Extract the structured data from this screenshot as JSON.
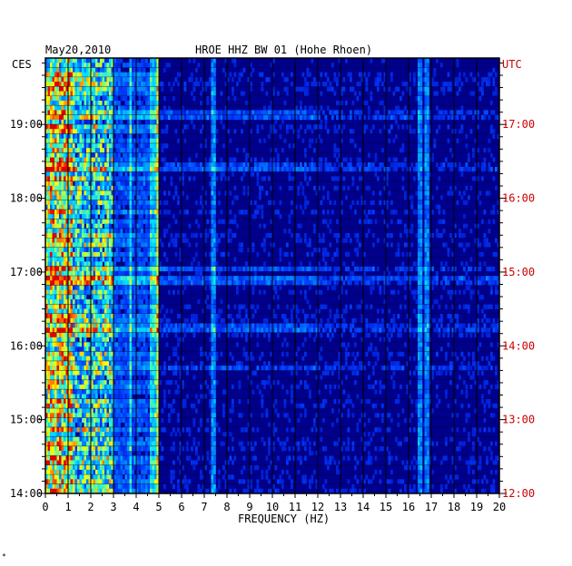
{
  "chart_data": {
    "type": "heatmap",
    "title": "HROE HHZ BW 01 (Hohe Rhoen)",
    "date": "May20,2010",
    "xlabel": "FREQUENCY (HZ)",
    "xlim": [
      0,
      20
    ],
    "x_ticks": [
      "0",
      "1",
      "2",
      "3",
      "4",
      "5",
      "6",
      "7",
      "8",
      "9",
      "10",
      "11",
      "12",
      "13",
      "14",
      "15",
      "16",
      "17",
      "18",
      "19",
      "20"
    ],
    "left_axis": {
      "label": "CES",
      "ticks": [
        "19:00",
        "18:00",
        "17:00",
        "16:00",
        "15:00",
        "14:00"
      ],
      "values_hours": [
        19,
        18,
        17,
        16,
        15,
        14
      ]
    },
    "right_axis": {
      "label": "UTC",
      "ticks": [
        "17:00",
        "16:00",
        "15:00",
        "14:00",
        "13:00",
        "12:00"
      ],
      "values_hours": [
        17,
        16,
        15,
        14,
        13,
        12
      ]
    },
    "time_range_ces_hours": [
      14.0,
      19.9
    ],
    "frequency_bins": 200,
    "time_rows": 92,
    "energy_bands": [
      {
        "from_hz": 0.0,
        "to_hz": 1.2,
        "level": 0.72
      },
      {
        "from_hz": 1.2,
        "to_hz": 3.0,
        "level": 0.5
      },
      {
        "from_hz": 3.0,
        "to_hz": 4.6,
        "level": 0.3
      },
      {
        "from_hz": 4.6,
        "to_hz": 5.0,
        "level": 0.55
      },
      {
        "from_hz": 5.0,
        "to_hz": 20.0,
        "level": 0.12
      }
    ],
    "line_frequencies_hz": [
      3.75,
      4.95,
      7.4,
      16.5,
      16.8
    ],
    "event_times_ces_hours": [
      17.05,
      16.25,
      15.7,
      16.9,
      18.4,
      19.15
    ],
    "colormap": [
      "#00007a",
      "#0010c8",
      "#0040ff",
      "#0090ff",
      "#00e0ff",
      "#70ff90",
      "#ffff00",
      "#ff8000",
      "#e00000"
    ],
    "colors": {
      "background": "#00008b",
      "grid": "#000000",
      "left_axis_text": "#000000",
      "right_axis_text": "#cc0000"
    }
  },
  "footer_mark": "*"
}
